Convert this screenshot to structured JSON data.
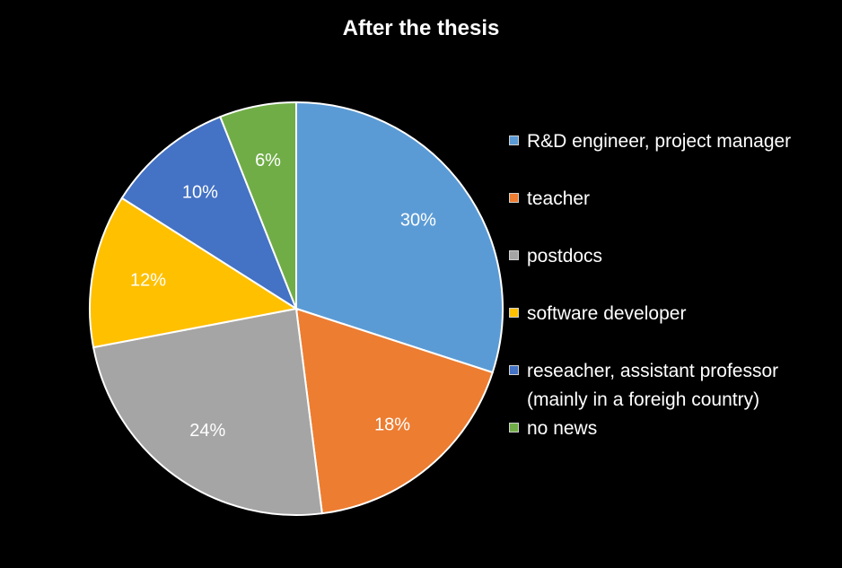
{
  "chart_data": {
    "type": "pie",
    "title": "After the thesis",
    "start_angle_deg": 0,
    "direction": "clockwise",
    "legend_position": "right",
    "slices": [
      {
        "label": "R&D engineer, project manager",
        "value": 30,
        "display": "30%",
        "color": "#5B9BD5"
      },
      {
        "label": "teacher",
        "value": 18,
        "display": "18%",
        "color": "#ED7D31"
      },
      {
        "label": "postdocs",
        "value": 24,
        "display": "24%",
        "color": "#A5A5A5"
      },
      {
        "label": "software developer",
        "value": 12,
        "display": "12%",
        "color": "#FFC000"
      },
      {
        "label": "reseacher, assistant professor (mainly in a foreigh country)",
        "value": 10,
        "display": "10%",
        "color": "#4472C4"
      },
      {
        "label": "no news",
        "value": 6,
        "display": "6%",
        "color": "#70AD47"
      }
    ]
  },
  "legend": {
    "items": [
      {
        "label": "R&D engineer, project manager",
        "color": "#5B9BD5"
      },
      {
        "label": "teacher",
        "color": "#ED7D31"
      },
      {
        "label": "postdocs",
        "color": "#A5A5A5"
      },
      {
        "label": "software developer",
        "color": "#FFC000"
      },
      {
        "label": "reseacher, assistant professor",
        "label_line2": "(mainly in a foreigh country)",
        "color": "#4472C4"
      },
      {
        "label": "no news",
        "color": "#70AD47"
      }
    ]
  }
}
